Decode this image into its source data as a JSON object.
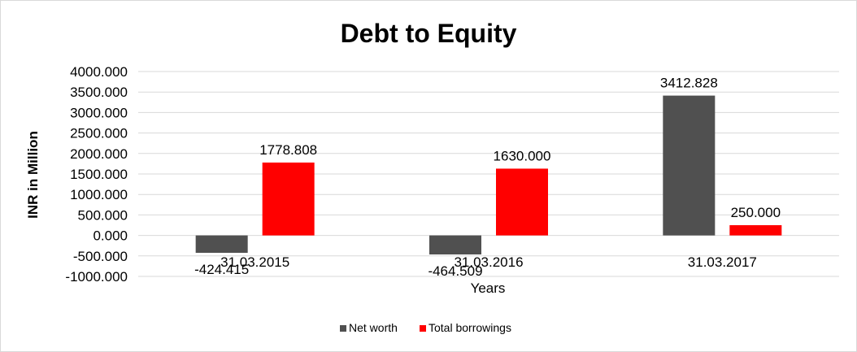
{
  "chart_data": {
    "type": "bar",
    "title": "Debt to Equity",
    "xlabel": "Years",
    "ylabel": "INR in Million",
    "categories": [
      "31.03.2015",
      "31.03.2016",
      "31.03.2017"
    ],
    "series": [
      {
        "name": "Net worth",
        "color": "#505050",
        "values": [
          -424.415,
          -464.509,
          3412.828
        ],
        "labels": [
          "-424.415",
          "-464.509",
          "3412.828"
        ]
      },
      {
        "name": "Total borrowings",
        "color": "#ff0000",
        "values": [
          1778.808,
          1630.0,
          250.0
        ],
        "labels": [
          "1778.808",
          "1630.000",
          "250.000"
        ]
      }
    ],
    "ylim": [
      -1000,
      4000
    ],
    "yticks": [
      "4000.000",
      "3500.000",
      "3000.000",
      "2500.000",
      "2000.000",
      "1500.000",
      "1000.000",
      "500.000",
      "0.000",
      "-500.000",
      "-1000.000"
    ],
    "grid": true,
    "legend": "bottom"
  }
}
